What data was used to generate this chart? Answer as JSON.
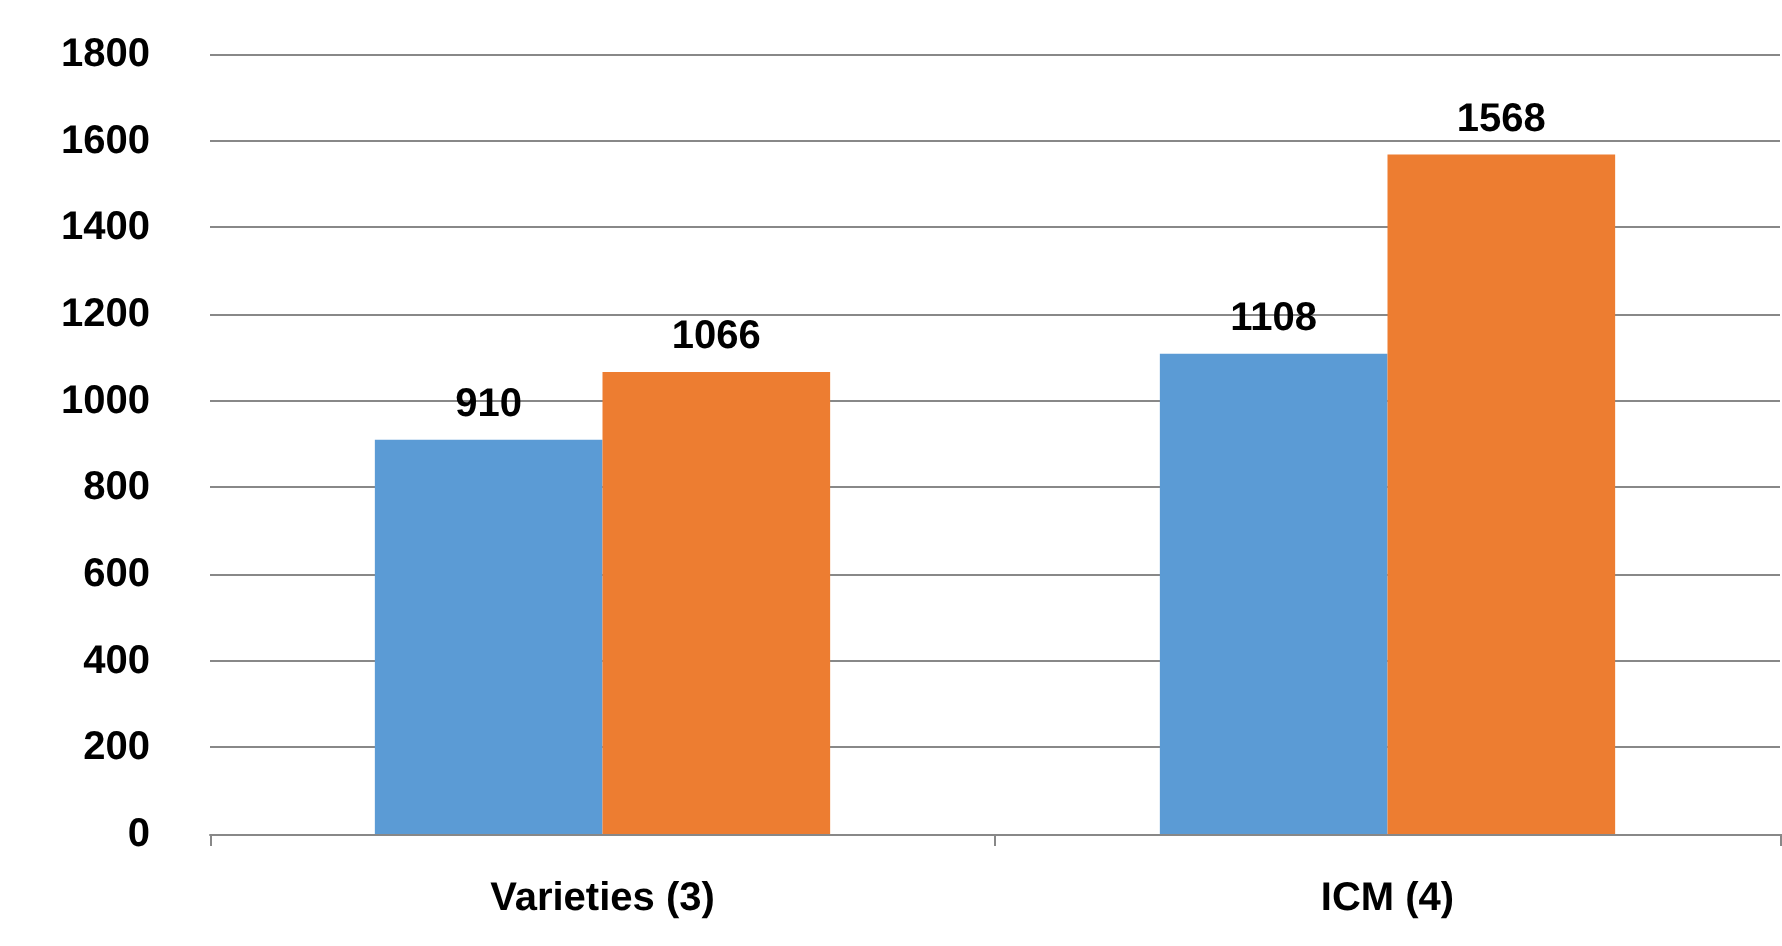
{
  "chart_data": {
    "type": "bar",
    "categories": [
      "Varieties (3)",
      "ICM (4)"
    ],
    "series": [
      {
        "color": "#5b9bd5",
        "values": [
          910,
          1108
        ]
      },
      {
        "color": "#ed7d31",
        "values": [
          1066,
          1568
        ]
      }
    ],
    "ylim": [
      0,
      1800
    ],
    "yticks": [
      0,
      200,
      400,
      600,
      800,
      1000,
      1200,
      1400,
      1600,
      1800
    ],
    "grid": "y",
    "data_labels": true
  }
}
